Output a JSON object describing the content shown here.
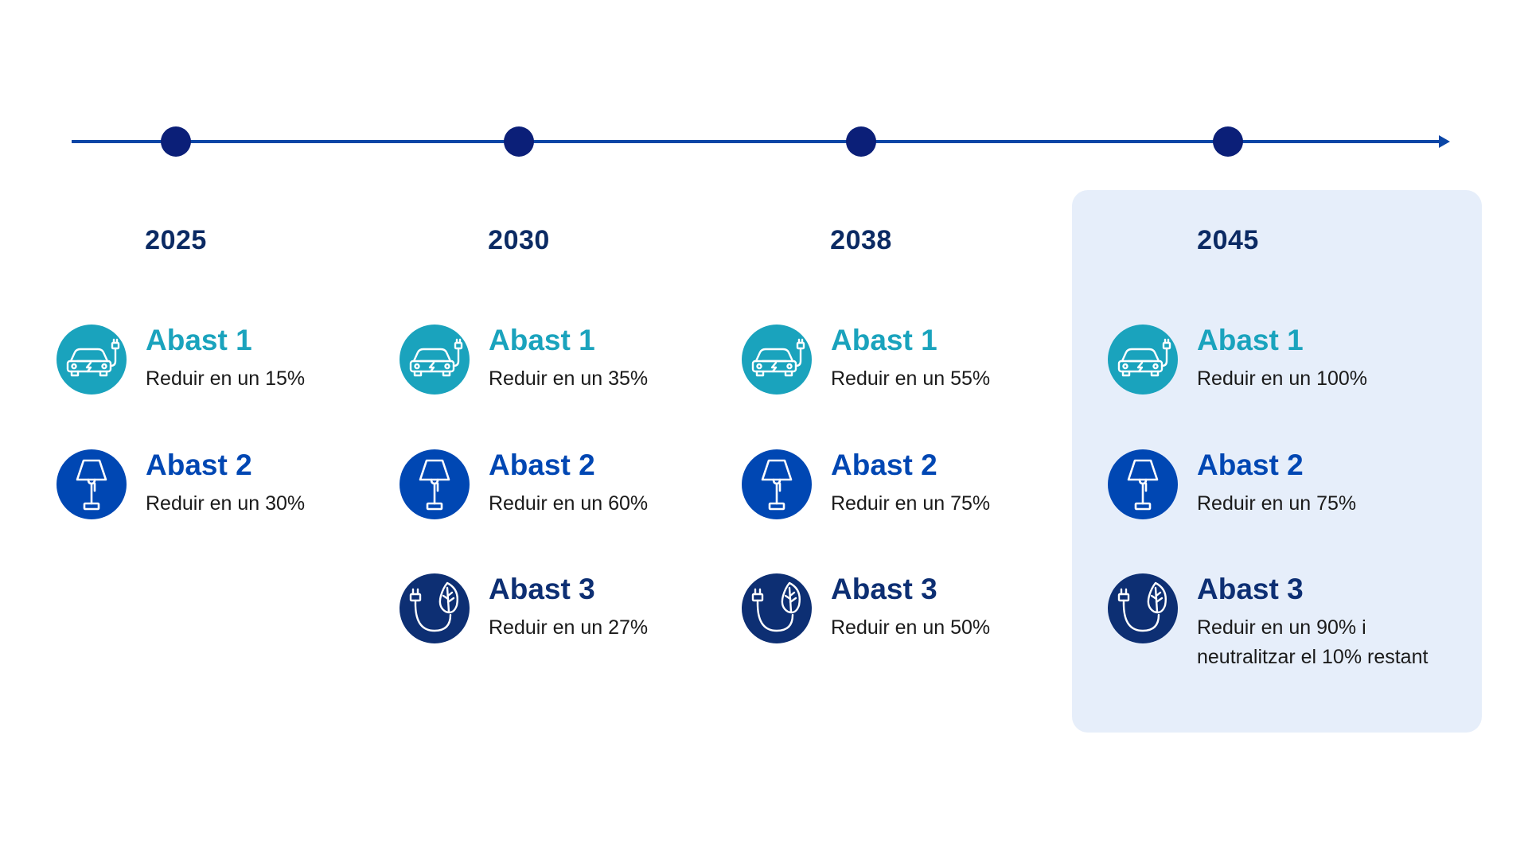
{
  "colors": {
    "timeline": "#0a46a6",
    "milestone": "#0b1f78",
    "year": "#0b2a63",
    "abast1": "#1aa3bd",
    "abast2": "#0047b3",
    "abast3": "#0d2f73",
    "highlight_bg": "#e6eefa"
  },
  "columns": [
    {
      "year": "2025",
      "items": [
        {
          "title": "Abast 1",
          "desc": "Reduir en un 15%",
          "icon": "electric-car-icon"
        },
        {
          "title": "Abast 2",
          "desc": "Reduir en un 30%",
          "icon": "lamp-icon"
        }
      ]
    },
    {
      "year": "2030",
      "items": [
        {
          "title": "Abast 1",
          "desc": "Reduir en un 35%",
          "icon": "electric-car-icon"
        },
        {
          "title": "Abast 2",
          "desc": "Reduir en un 60%",
          "icon": "lamp-icon"
        },
        {
          "title": "Abast 3",
          "desc": "Reduir en un 27%",
          "icon": "eco-plug-icon"
        }
      ]
    },
    {
      "year": "2038",
      "items": [
        {
          "title": "Abast 1",
          "desc": "Reduir en un 55%",
          "icon": "electric-car-icon"
        },
        {
          "title": "Abast 2",
          "desc": "Reduir en un 75%",
          "icon": "lamp-icon"
        },
        {
          "title": "Abast 3",
          "desc": "Reduir en un 50%",
          "icon": "eco-plug-icon"
        }
      ]
    },
    {
      "year": "2045",
      "items": [
        {
          "title": "Abast 1",
          "desc": "Reduir en un 100%",
          "icon": "electric-car-icon"
        },
        {
          "title": "Abast 2",
          "desc": "Reduir en un 75%",
          "icon": "lamp-icon"
        },
        {
          "title": "Abast 3",
          "desc": "Reduir en un 90% i",
          "desc2": "neutralitzar el 10% restant",
          "icon": "eco-plug-icon"
        }
      ]
    }
  ]
}
